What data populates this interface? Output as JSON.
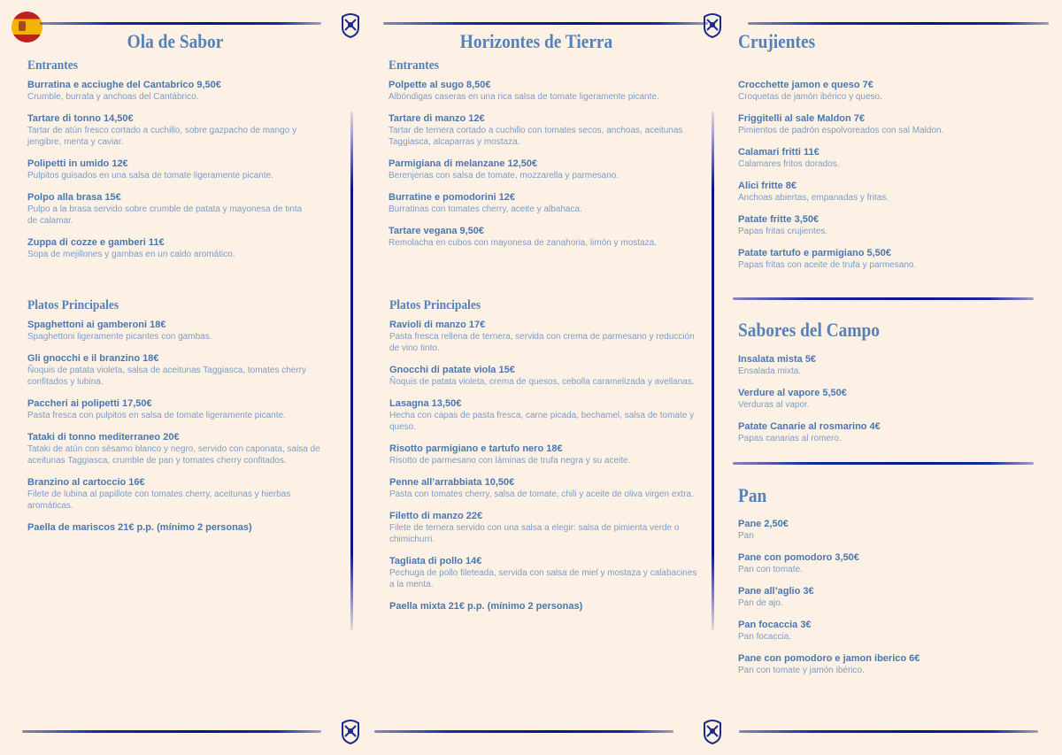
{
  "colors": {
    "background": "#fdf0e5",
    "heading": "#5582b6",
    "item_name": "#4a78ae",
    "description": "#7c9dc4",
    "rule": "#0a1488"
  },
  "language_flag": "spain-flag-icon",
  "columns": [
    {
      "title": "Ola de Sabor",
      "sections": [
        {
          "heading": "Entrantes",
          "items": [
            {
              "name": "Burratina e acciughe del Cantabrico 9,50€",
              "desc": "Crumble, burrata y anchoas del Cantábrico."
            },
            {
              "name": "Tartare di tonno 14,50€",
              "desc": "Tartar de atún fresco cortado a cuchillo, sobre gazpacho de mango y jengibre, menta y caviar."
            },
            {
              "name": "Polipetti in umido 12€",
              "desc": "Pulpitos guisados en una salsa de tomate ligeramente picante."
            },
            {
              "name": "Polpo alla brasa 15€",
              "desc": "Pulpo a la brasa servido sobre crumble de patata y mayonesa de tinta de calamar."
            },
            {
              "name": "Zuppa di cozze e gamberi 11€",
              "desc": "Sopa de mejillones y gambas en un caldo aromático."
            }
          ]
        },
        {
          "heading": "Platos Principales",
          "items": [
            {
              "name": "Spaghettoni ai gamberoni 18€",
              "desc": "Spaghettoni ligeramente picantes con gambas."
            },
            {
              "name": "Gli gnocchi e il branzino 18€",
              "desc": "Ñoquis de patata violeta, salsa de aceitunas Taggiasca, tomates cherry confitados y lubina."
            },
            {
              "name": "Paccheri ai polipetti 17,50€",
              "desc": "Pasta fresca con pulpitos en salsa de tomate ligeramente picante."
            },
            {
              "name": "Tataki di tonno mediterraneo 20€",
              "desc": "Tataki de atún con sésamo blanco y negro, servido con caponata, salsa de aceitunas Taggiasca, crumble de pan y tomates cherry confitados."
            },
            {
              "name": "Branzino al cartoccio 16€",
              "desc": "Filete de lubina al papillote con tomates cherry, aceitunas y hierbas aromáticas."
            },
            {
              "name": "Paella de mariscos 21€ p.p. (mínimo 2 personas)",
              "desc": ""
            }
          ]
        }
      ]
    },
    {
      "title": "Horizontes de Tierra",
      "sections": [
        {
          "heading": "Entrantes",
          "items": [
            {
              "name": "Polpette al sugo 8,50€",
              "desc": "Albóndigas caseras en una rica salsa de tomate ligeramente picante."
            },
            {
              "name": "Tartare di manzo 12€",
              "desc": "Tartar de ternera cortado a cuchillo con tomates secos, anchoas, aceitunas Taggiasca, alcaparras y mostaza."
            },
            {
              "name": "Parmigiana di melanzane 12,50€",
              "desc": "Berenjenas con salsa de tomate, mozzarella y parmesano."
            },
            {
              "name": "Burratine e pomodorini 12€",
              "desc": "Burratinas con tomates cherry, aceite y albahaca."
            },
            {
              "name": "Tartare vegana 9,50€",
              "desc": "Remolacha en cubos con mayonesa de zanahoria, limón y mostaza."
            }
          ]
        },
        {
          "heading": "Platos Principales",
          "items": [
            {
              "name": "Ravioli di manzo 17€",
              "desc": "Pasta fresca rellena de ternera, servida con crema de parmesano y reducción de vino tinto."
            },
            {
              "name": "Gnocchi di patate viola 15€",
              "desc": "Ñoquis de patata violeta, crema de quesos, cebolla caramelizada y avellanas."
            },
            {
              "name": "Lasagna 13,50€",
              "desc": "Hecha con capas de pasta fresca, carne picada, bechamel, salsa de tomate y queso."
            },
            {
              "name": "Risotto parmigiano e tartufo nero 18€",
              "desc": "Risotto de parmesano con láminas de trufa negra y su aceite."
            },
            {
              "name": "Penne all’arrabbiata 10,50€",
              "desc": "Pasta con tomates cherry, salsa de tomate, chili y aceite de oliva virgen extra."
            },
            {
              "name": "Filetto di manzo 22€",
              "desc": "Filete de ternera servido con una salsa a elegir: salsa de pimienta verde o chimichurri."
            },
            {
              "name": "Tagliata di pollo 14€",
              "desc": "Pechuga de pollo fileteada, servida con salsa de miel y mostaza y calabacines a la menta."
            },
            {
              "name": "Paella mixta 21€ p.p. (mínimo 2 personas)",
              "desc": ""
            }
          ]
        }
      ]
    },
    {
      "sections": [
        {
          "title": "Crujientes",
          "items": [
            {
              "name": "Crocchette jamon e queso 7€",
              "desc": "Croquetas de jamón ibérico y queso."
            },
            {
              "name": "Friggitelli al sale Maldon 7€",
              "desc": "Pimientos de padrón espolvoreados con sal Maldon."
            },
            {
              "name": "Calamari fritti 11€",
              "desc": "Calamares fritos dorados."
            },
            {
              "name": "Alici fritte 8€",
              "desc": "Anchoas abiertas, empanadas y fritas."
            },
            {
              "name": "Patate fritte 3,50€",
              "desc": "Papas fritas crujientes."
            },
            {
              "name": "Patate tartufo e parmigiano 5,50€",
              "desc": "Papas fritas con aceite de trufa y parmesano."
            }
          ]
        },
        {
          "title": "Sabores del Campo",
          "items": [
            {
              "name": "Insalata mista 5€",
              "desc": "Ensalada mixta."
            },
            {
              "name": "Verdure al vapore 5,50€",
              "desc": "Verduras al vapor."
            },
            {
              "name": "Patate Canarie al rosmarino 4€",
              "desc": "Papas canarias al romero."
            }
          ]
        },
        {
          "title": "Pan",
          "items": [
            {
              "name": "Pane 2,50€",
              "desc": "Pan"
            },
            {
              "name": "Pane con pomodoro 3,50€",
              "desc": "Pan con tomate."
            },
            {
              "name": "Pane all’aglio 3€",
              "desc": "Pan de ajo."
            },
            {
              "name": "Pan focaccia 3€",
              "desc": "Pan focaccia."
            },
            {
              "name": "Pane con pomodoro e jamon iberico 6€",
              "desc": "Pan con tomate y jamón ibérico."
            }
          ]
        }
      ]
    }
  ]
}
